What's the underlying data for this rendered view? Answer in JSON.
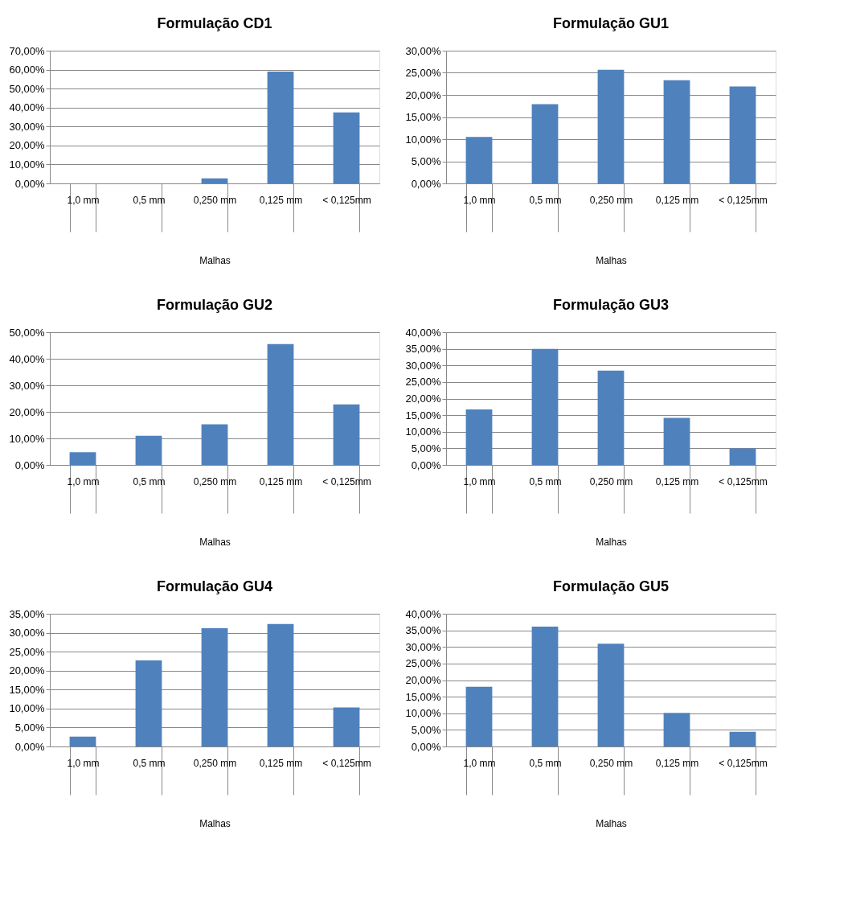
{
  "chart_data": [
    {
      "type": "bar",
      "title": "Formulação CD1",
      "xlabel": "Malhas",
      "categories": [
        "1,0 mm",
        "0,5 mm",
        "0,250 mm",
        "0,125 mm",
        "< 0,125mm"
      ],
      "values": [
        0,
        0,
        2.7,
        59,
        37.4
      ],
      "color": "#4f81bd",
      "ylim": [
        0,
        70
      ],
      "yticks": [
        {
          "value": 0,
          "label": "0,00%"
        },
        {
          "value": 10,
          "label": "10,00%"
        },
        {
          "value": 20,
          "label": "20,00%"
        },
        {
          "value": 30,
          "label": "30,00%"
        },
        {
          "value": 40,
          "label": "40,00%"
        },
        {
          "value": 50,
          "label": "50,00%"
        },
        {
          "value": 60,
          "label": "60,00%"
        },
        {
          "value": 70,
          "label": "70,00%"
        }
      ],
      "grid": "y"
    },
    {
      "type": "bar",
      "title": "Formulação GU1",
      "xlabel": "Malhas",
      "categories": [
        "1,0 mm",
        "0,5 mm",
        "0,250 mm",
        "0,125 mm",
        "< 0,125mm"
      ],
      "values": [
        10.5,
        17.9,
        25.7,
        23.3,
        21.9
      ],
      "color": "#4f81bd",
      "ylim": [
        0,
        30
      ],
      "yticks": [
        {
          "value": 0,
          "label": "0,00%"
        },
        {
          "value": 5,
          "label": "5,00%"
        },
        {
          "value": 10,
          "label": "10,00%"
        },
        {
          "value": 15,
          "label": "15,00%"
        },
        {
          "value": 20,
          "label": "20,00%"
        },
        {
          "value": 25,
          "label": "25,00%"
        },
        {
          "value": 30,
          "label": "30,00%"
        }
      ],
      "grid": "y"
    },
    {
      "type": "bar",
      "title": "Formulação GU2",
      "xlabel": "Malhas",
      "categories": [
        "1,0 mm",
        "0,5 mm",
        "0,250 mm",
        "0,125 mm",
        "< 0,125mm"
      ],
      "values": [
        4.8,
        11.0,
        15.3,
        45.5,
        22.8
      ],
      "color": "#4f81bd",
      "ylim": [
        0,
        50
      ],
      "yticks": [
        {
          "value": 0,
          "label": "0,00%"
        },
        {
          "value": 10,
          "label": "10,00%"
        },
        {
          "value": 20,
          "label": "20,00%"
        },
        {
          "value": 30,
          "label": "30,00%"
        },
        {
          "value": 40,
          "label": "40,00%"
        },
        {
          "value": 50,
          "label": "50,00%"
        }
      ],
      "grid": "y"
    },
    {
      "type": "bar",
      "title": "Formulação GU3",
      "xlabel": "Malhas",
      "categories": [
        "1,0 mm",
        "0,5 mm",
        "0,250 mm",
        "0,125 mm",
        "< 0,125mm"
      ],
      "values": [
        16.7,
        35.0,
        28.4,
        14.2,
        5.0
      ],
      "color": "#4f81bd",
      "ylim": [
        0,
        40
      ],
      "yticks": [
        {
          "value": 0,
          "label": "0,00%"
        },
        {
          "value": 5,
          "label": "5,00%"
        },
        {
          "value": 10,
          "label": "10,00%"
        },
        {
          "value": 15,
          "label": "15,00%"
        },
        {
          "value": 20,
          "label": "20,00%"
        },
        {
          "value": 25,
          "label": "25,00%"
        },
        {
          "value": 30,
          "label": "30,00%"
        },
        {
          "value": 35,
          "label": "35,00%"
        },
        {
          "value": 40,
          "label": "40,00%"
        }
      ],
      "grid": "y"
    },
    {
      "type": "bar",
      "title": "Formulação GU4",
      "xlabel": "Malhas",
      "categories": [
        "1,0 mm",
        "0,5 mm",
        "0,250 mm",
        "0,125 mm",
        "< 0,125mm"
      ],
      "values": [
        2.6,
        22.7,
        31.2,
        32.3,
        10.3
      ],
      "color": "#4f81bd",
      "ylim": [
        0,
        35
      ],
      "yticks": [
        {
          "value": 0,
          "label": "0,00%"
        },
        {
          "value": 5,
          "label": "5,00%"
        },
        {
          "value": 10,
          "label": "10,00%"
        },
        {
          "value": 15,
          "label": "15,00%"
        },
        {
          "value": 20,
          "label": "20,00%"
        },
        {
          "value": 25,
          "label": "25,00%"
        },
        {
          "value": 30,
          "label": "30,00%"
        },
        {
          "value": 35,
          "label": "35,00%"
        }
      ],
      "grid": "y"
    },
    {
      "type": "bar",
      "title": "Formulação GU5",
      "xlabel": "Malhas",
      "categories": [
        "1,0 mm",
        "0,5 mm",
        "0,250 mm",
        "0,125 mm",
        "< 0,125mm"
      ],
      "values": [
        18.0,
        36.1,
        31.0,
        10.1,
        4.4
      ],
      "color": "#4f81bd",
      "ylim": [
        0,
        40
      ],
      "yticks": [
        {
          "value": 0,
          "label": "0,00%"
        },
        {
          "value": 5,
          "label": "5,00%"
        },
        {
          "value": 10,
          "label": "10,00%"
        },
        {
          "value": 15,
          "label": "15,00%"
        },
        {
          "value": 20,
          "label": "20,00%"
        },
        {
          "value": 25,
          "label": "25,00%"
        },
        {
          "value": 30,
          "label": "30,00%"
        },
        {
          "value": 35,
          "label": "35,00%"
        },
        {
          "value": 40,
          "label": "40,00%"
        }
      ],
      "grid": "y"
    }
  ]
}
